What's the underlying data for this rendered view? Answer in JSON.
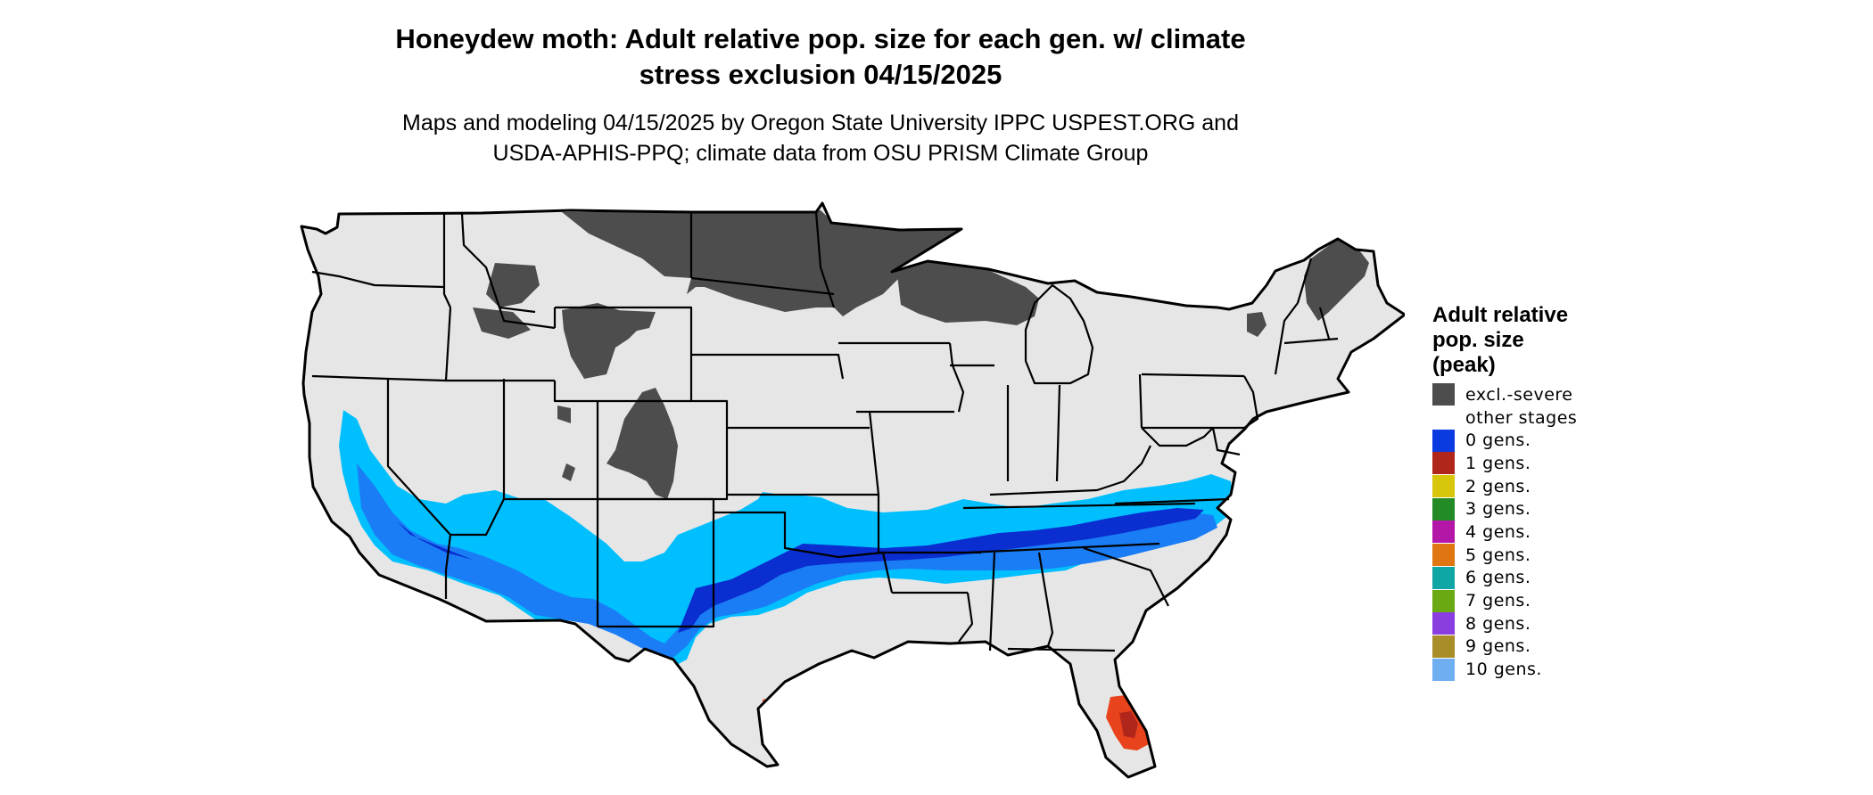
{
  "title_lines": [
    "Honeydew moth: Adult relative pop. size for each gen. w/ climate",
    "stress exclusion 04/15/2025"
  ],
  "subtitle_lines": [
    "Maps and modeling 04/15/2025 by Oregon State University IPPC USPEST.ORG and",
    "USDA-APHIS-PPQ; climate data from OSU PRISM Climate Group"
  ],
  "legend": {
    "title_lines": [
      "Adult relative",
      "pop. size",
      "(peak)"
    ],
    "items": [
      {
        "label": "excl.-severe",
        "color": "#4d4d4d"
      },
      {
        "label": "other stages",
        "color": "#ffffff"
      },
      {
        "label": "0 gens.",
        "color": "#0a3be0"
      },
      {
        "label": "1 gens.",
        "color": "#b0261b"
      },
      {
        "label": "2 gens.",
        "color": "#d8c60b"
      },
      {
        "label": "3 gens.",
        "color": "#238b25"
      },
      {
        "label": "4 gens.",
        "color": "#b416a8"
      },
      {
        "label": "5 gens.",
        "color": "#e07612"
      },
      {
        "label": "6 gens.",
        "color": "#10a6a6"
      },
      {
        "label": "7 gens.",
        "color": "#6aa814"
      },
      {
        "label": "8 gens.",
        "color": "#8b3ee0"
      },
      {
        "label": "9 gens.",
        "color": "#a98d28"
      },
      {
        "label": "10 gens.",
        "color": "#6faef0"
      }
    ]
  },
  "map_colors": {
    "land": "#e6e6e6",
    "excluded": "#4d4d4d",
    "zero_gen_light": "#00bfff",
    "zero_gen_mid": "#1a7df5",
    "zero_gen_dark": "#0a2ecf",
    "one_gen": "#e8431c",
    "border": "#000000"
  }
}
